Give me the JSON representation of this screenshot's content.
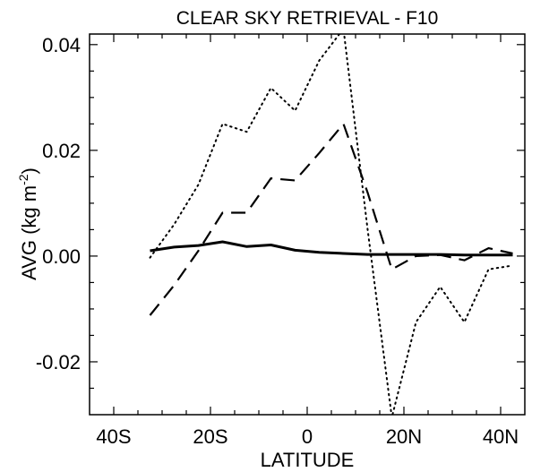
{
  "chart_data": {
    "type": "line",
    "title": "CLEAR SKY RETRIEVAL - F10",
    "xlabel": "LATITUDE",
    "ylabel_prefix": "AVG (kg m",
    "ylabel_exp": "-2",
    "ylabel_suffix": ")",
    "xlim": [
      -45,
      45
    ],
    "ylim": [
      -0.03,
      0.042
    ],
    "xticks": [
      {
        "value": -40,
        "label": "40S"
      },
      {
        "value": -20,
        "label": "20S"
      },
      {
        "value": 0,
        "label": "0"
      },
      {
        "value": 20,
        "label": "20N"
      },
      {
        "value": 40,
        "label": "40N"
      }
    ],
    "yticks": [
      {
        "value": 0.04,
        "label": "0.04"
      },
      {
        "value": 0.02,
        "label": "0.02"
      },
      {
        "value": 0.0,
        "label": "0.00"
      },
      {
        "value": -0.02,
        "label": "-0.02"
      }
    ],
    "grid": false,
    "series": [
      {
        "style": "solid",
        "x": [
          -32.5,
          -27.5,
          -22.5,
          -17.5,
          -12.5,
          -7.5,
          -2.5,
          2.5,
          7.5,
          12.5,
          17.5,
          22.5,
          27.5,
          32.5,
          37.5,
          42.5
        ],
        "y": [
          0.001,
          0.0017,
          0.002,
          0.0027,
          0.0018,
          0.0021,
          0.0011,
          0.0007,
          0.0005,
          0.0003,
          0.0003,
          0.0003,
          0.0003,
          0.0002,
          0.0002,
          0.0002
        ]
      },
      {
        "style": "dashed",
        "x": [
          -32.5,
          -27.5,
          -22.5,
          -17.5,
          -12.5,
          -7.5,
          -2.5,
          2.5,
          7.5,
          12.5,
          17.5,
          22.5,
          27.5,
          32.5,
          37.5,
          42.5
        ],
        "y": [
          -0.0112,
          -0.0055,
          0.001,
          0.0082,
          0.0082,
          0.0147,
          0.0143,
          0.0195,
          0.025,
          0.012,
          -0.0025,
          0.0,
          0.0002,
          -0.0008,
          0.0015,
          0.0005
        ]
      },
      {
        "style": "dotted",
        "x": [
          -32.5,
          -27.5,
          -22.5,
          -17.5,
          -12.5,
          -7.5,
          -2.5,
          2.5,
          7.5,
          12.5,
          17.5,
          22.5,
          27.5,
          32.5,
          37.5,
          42.5
        ],
        "y": [
          -0.0003,
          0.006,
          0.0135,
          0.025,
          0.0235,
          0.0318,
          0.0275,
          0.037,
          0.043,
          0.005,
          -0.0305,
          -0.0125,
          -0.0058,
          -0.0125,
          -0.0025,
          -0.0018
        ]
      }
    ]
  }
}
